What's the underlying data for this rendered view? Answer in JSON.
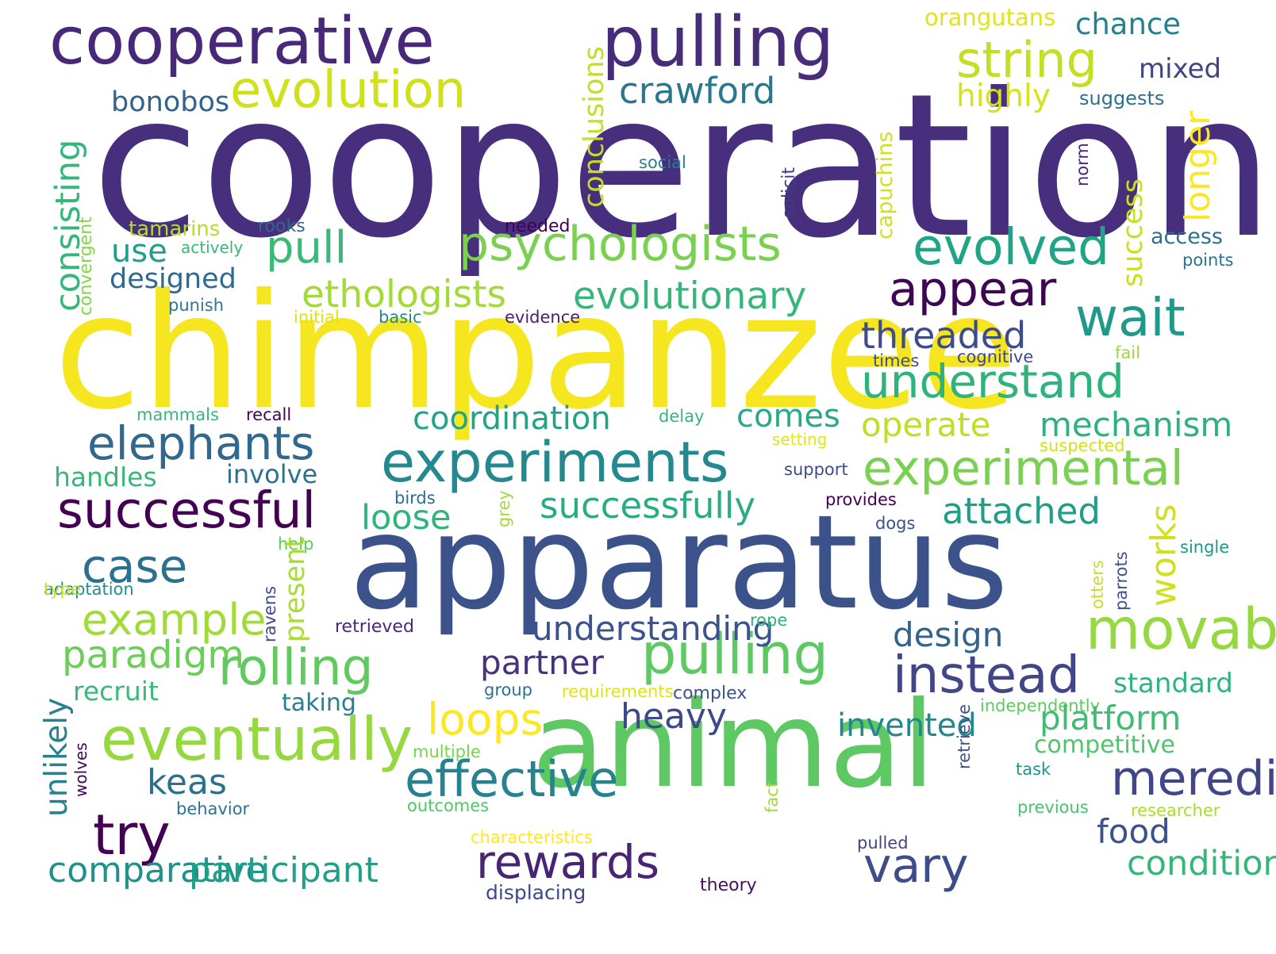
{
  "words": [
    {
      "text": "cooperation",
      "color": "#472f7d"
    },
    {
      "text": "chimpanzee",
      "color": "#f5e61f"
    },
    {
      "text": "apparatus",
      "color": "#3b528b"
    },
    {
      "text": "animal",
      "color": "#5ec962"
    },
    {
      "text": "cooperative",
      "color": "#482878"
    },
    {
      "text": "pulling",
      "color": "#472c7a"
    },
    {
      "text": "pulling",
      "color": "#5ec962"
    },
    {
      "text": "evolution",
      "color": "#d0e11c"
    },
    {
      "text": "string",
      "color": "#c2df23"
    },
    {
      "text": "crawford",
      "color": "#2a788e"
    },
    {
      "text": "highly",
      "color": "#d8e219"
    },
    {
      "text": "orangutans",
      "color": "#e2e418"
    },
    {
      "text": "chance",
      "color": "#26818e"
    },
    {
      "text": "mixed",
      "color": "#414487"
    },
    {
      "text": "suggests",
      "color": "#2c718e"
    },
    {
      "text": "bonobos",
      "color": "#33638d"
    },
    {
      "text": "conclusions",
      "color": "#c2df23"
    },
    {
      "text": "consisting",
      "color": "#35b779"
    },
    {
      "text": "convergent",
      "color": "#86d549"
    },
    {
      "text": "capuchins",
      "color": "#d0e11c"
    },
    {
      "text": "solicit",
      "color": "#443983"
    },
    {
      "text": "social",
      "color": "#26828e"
    },
    {
      "text": "norm",
      "color": "#482878"
    },
    {
      "text": "longer",
      "color": "#fde725"
    },
    {
      "text": "success",
      "color": "#c8e020"
    },
    {
      "text": "access",
      "color": "#2d708e"
    },
    {
      "text": "points",
      "color": "#2c728e"
    },
    {
      "text": "tamarins",
      "color": "#b5de2b"
    },
    {
      "text": "rooks",
      "color": "#31688e"
    },
    {
      "text": "needed",
      "color": "#440154"
    },
    {
      "text": "use",
      "color": "#1f9e89"
    },
    {
      "text": "actively",
      "color": "#37b878"
    },
    {
      "text": "pull",
      "color": "#3aba76"
    },
    {
      "text": "psychologists",
      "color": "#7ad151"
    },
    {
      "text": "evolved",
      "color": "#20a486"
    },
    {
      "text": "designed",
      "color": "#31688e"
    },
    {
      "text": "appear",
      "color": "#3e0751"
    },
    {
      "text": "punish",
      "color": "#2a788e"
    },
    {
      "text": "initial",
      "color": "#dde318"
    },
    {
      "text": "basic",
      "color": "#23898e"
    },
    {
      "text": "evidence",
      "color": "#482071"
    },
    {
      "text": "ethologists",
      "color": "#a2da37"
    },
    {
      "text": "evolutionary",
      "color": "#35b779"
    },
    {
      "text": "wait",
      "color": "#1f9a8a"
    },
    {
      "text": "threaded",
      "color": "#3e4c8a"
    },
    {
      "text": "times",
      "color": "#3b528b"
    },
    {
      "text": "cognitive",
      "color": "#3e4989"
    },
    {
      "text": "fail",
      "color": "#9dd93b"
    },
    {
      "text": "understand",
      "color": "#2eb37c"
    },
    {
      "text": "mammals",
      "color": "#35b779"
    },
    {
      "text": "recall",
      "color": "#440154"
    },
    {
      "text": "delay",
      "color": "#35b779"
    },
    {
      "text": "coordination",
      "color": "#20a386"
    },
    {
      "text": "comes",
      "color": "#25ac82"
    },
    {
      "text": "operate",
      "color": "#bddf26"
    },
    {
      "text": "mechanism",
      "color": "#2db27d"
    },
    {
      "text": "elephants",
      "color": "#31688e"
    },
    {
      "text": "setting",
      "color": "#e5e419"
    },
    {
      "text": "suspected",
      "color": "#d0e11c"
    },
    {
      "text": "experiments",
      "color": "#23898e"
    },
    {
      "text": "experimental",
      "color": "#7ad151"
    },
    {
      "text": "handles",
      "color": "#37b878"
    },
    {
      "text": "involve",
      "color": "#2d718e"
    },
    {
      "text": "support",
      "color": "#3e4c8a"
    },
    {
      "text": "successful",
      "color": "#440154"
    },
    {
      "text": "birds",
      "color": "#2f6b8e"
    },
    {
      "text": "grey",
      "color": "#a2da37"
    },
    {
      "text": "provides",
      "color": "#440154"
    },
    {
      "text": "loose",
      "color": "#2fb47c"
    },
    {
      "text": "successfully",
      "color": "#27ad81"
    },
    {
      "text": "attached",
      "color": "#1f9e89"
    },
    {
      "text": "dogs",
      "color": "#3b528b"
    },
    {
      "text": "works",
      "color": "#d0e11c"
    },
    {
      "text": "help",
      "color": "#5ec962"
    },
    {
      "text": "single",
      "color": "#1f958b"
    },
    {
      "text": "case",
      "color": "#2d708e"
    },
    {
      "text": "adaptation",
      "color": "#21908d"
    },
    {
      "text": "type",
      "color": "#c8e020"
    },
    {
      "text": "present",
      "color": "#a8db34"
    },
    {
      "text": "otters",
      "color": "#c8e020"
    },
    {
      "text": "parrots",
      "color": "#3b528b"
    },
    {
      "text": "ravens",
      "color": "#3e4989"
    },
    {
      "text": "example",
      "color": "#a2da37"
    },
    {
      "text": "retrieved",
      "color": "#482878"
    },
    {
      "text": "understanding",
      "color": "#3b528b"
    },
    {
      "text": "rope",
      "color": "#2db27d"
    },
    {
      "text": "movable",
      "color": "#95d840"
    },
    {
      "text": "design",
      "color": "#33638d"
    },
    {
      "text": "paradigm",
      "color": "#6ccd5a"
    },
    {
      "text": "rolling",
      "color": "#60ca60"
    },
    {
      "text": "partner",
      "color": "#46327e"
    },
    {
      "text": "instead",
      "color": "#404688"
    },
    {
      "text": "standard",
      "color": "#2fb47c"
    },
    {
      "text": "unlikely",
      "color": "#26828e"
    },
    {
      "text": "recruit",
      "color": "#3aba76"
    },
    {
      "text": "group",
      "color": "#2c728e"
    },
    {
      "text": "requirements",
      "color": "#dde318"
    },
    {
      "text": "complex",
      "color": "#3b528b"
    },
    {
      "text": "taking",
      "color": "#287d8e"
    },
    {
      "text": "independently",
      "color": "#5ec962"
    },
    {
      "text": "wolves",
      "color": "#3f0853"
    },
    {
      "text": "loops",
      "color": "#fde725"
    },
    {
      "text": "heavy",
      "color": "#3e4989"
    },
    {
      "text": "invented",
      "color": "#24868e"
    },
    {
      "text": "platform",
      "color": "#40bd72"
    },
    {
      "text": "eventually",
      "color": "#95d840"
    },
    {
      "text": "fact",
      "color": "#a2da37"
    },
    {
      "text": "retrieve",
      "color": "#3b528b"
    },
    {
      "text": "competitive",
      "color": "#50c46a"
    },
    {
      "text": "multiple",
      "color": "#7ad151"
    },
    {
      "text": "task",
      "color": "#1f968b"
    },
    {
      "text": "meredith",
      "color": "#404688"
    },
    {
      "text": "keas",
      "color": "#2d708e"
    },
    {
      "text": "effective",
      "color": "#26828e"
    },
    {
      "text": "behavior",
      "color": "#2c728e"
    },
    {
      "text": "outcomes",
      "color": "#52c569"
    },
    {
      "text": "previous",
      "color": "#4ac16d"
    },
    {
      "text": "researcher",
      "color": "#addc30"
    },
    {
      "text": "try",
      "color": "#440154"
    },
    {
      "text": "food",
      "color": "#3b528b"
    },
    {
      "text": "characteristics",
      "color": "#fde725"
    },
    {
      "text": "pulled",
      "color": "#414487"
    },
    {
      "text": "comparative",
      "color": "#21918c"
    },
    {
      "text": "participant",
      "color": "#1fa088"
    },
    {
      "text": "rewards",
      "color": "#482475"
    },
    {
      "text": "vary",
      "color": "#3e4c8a"
    },
    {
      "text": "condition",
      "color": "#35b779"
    },
    {
      "text": "displacing",
      "color": "#3e4989"
    },
    {
      "text": "theory",
      "color": "#470e61"
    }
  ]
}
